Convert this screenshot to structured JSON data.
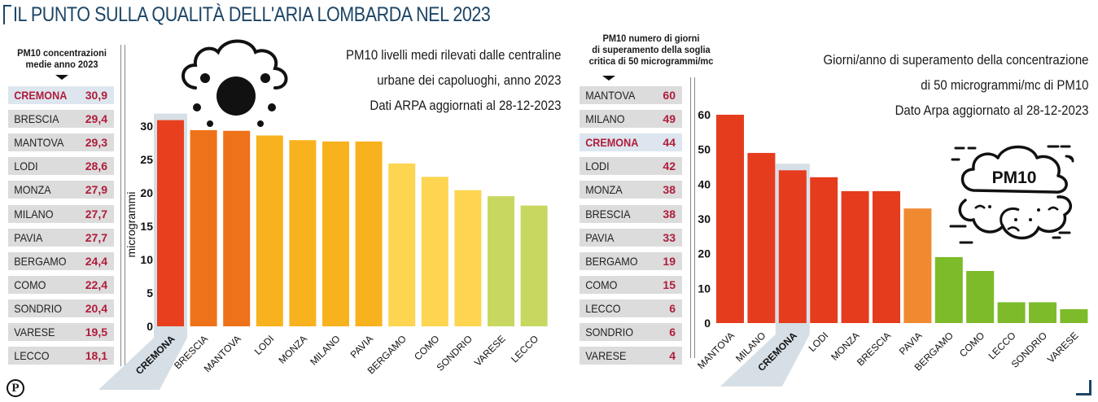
{
  "title": "IL PUNTO SULLA QUALITÀ DELL'ARIA LOMBARDA NEL 2023",
  "logo_icon": "publisher-logo-p",
  "left_table": {
    "header": [
      "PM10 concentrazioni",
      "medie anno 2023"
    ],
    "rows": [
      {
        "city": "CREMONA",
        "value": "30,9",
        "highlight": true
      },
      {
        "city": "BRESCIA",
        "value": "29,4"
      },
      {
        "city": "MANTOVA",
        "value": "29,3"
      },
      {
        "city": "LODI",
        "value": "28,6"
      },
      {
        "city": "MONZA",
        "value": "27,9"
      },
      {
        "city": "MILANO",
        "value": "27,7"
      },
      {
        "city": "PAVIA",
        "value": "27,7"
      },
      {
        "city": "BERGAMO",
        "value": "24,4"
      },
      {
        "city": "COMO",
        "value": "22,4"
      },
      {
        "city": "SONDRIO",
        "value": "20,4"
      },
      {
        "city": "VARESE",
        "value": "19,5"
      },
      {
        "city": "LECCO",
        "value": "18,1"
      }
    ]
  },
  "right_table": {
    "header": [
      "PM10 numero di giorni",
      "di superamento della soglia",
      "critica di 50 microgrammi/mc"
    ],
    "rows": [
      {
        "city": "MANTOVA",
        "value": "60"
      },
      {
        "city": "MILANO",
        "value": "49"
      },
      {
        "city": "CREMONA",
        "value": "44",
        "highlight": true
      },
      {
        "city": "LODI",
        "value": "42"
      },
      {
        "city": "MONZA",
        "value": "38"
      },
      {
        "city": "BRESCIA",
        "value": "38"
      },
      {
        "city": "PAVIA",
        "value": "33"
      },
      {
        "city": "BERGAMO",
        "value": "19"
      },
      {
        "city": "COMO",
        "value": "15"
      },
      {
        "city": "LECCO",
        "value": "6"
      },
      {
        "city": "SONDRIO",
        "value": "6"
      },
      {
        "city": "VARESE",
        "value": "4"
      }
    ]
  },
  "colors": {
    "title": "#1c4566",
    "value_text": "#b01c3b",
    "highlight_bg": "#dde6ee",
    "row_bg": "#dcdcdc"
  },
  "chart_data": [
    {
      "type": "bar",
      "title": "PM10 livelli medi rilevati dalle centraline urbane dei capoluoghi, anno 2023",
      "note_lines": [
        "PM10 livelli medi rilevati dalle centraline",
        "urbane dei capoluoghi, anno 2023",
        "Dati ARPA aggiornati al 28-12-2023"
      ],
      "icon": "smog-cloud-icon",
      "categories": [
        "CREMONA",
        "BRESCIA",
        "MANTOVA",
        "LODI",
        "MONZA",
        "MILANO",
        "PAVIA",
        "BERGAMO",
        "COMO",
        "SONDRIO",
        "VARESE",
        "LECCO"
      ],
      "values": [
        30.9,
        29.4,
        29.3,
        28.6,
        27.9,
        27.7,
        27.7,
        24.4,
        22.4,
        20.4,
        19.5,
        18.1
      ],
      "bar_colors": [
        "#e8401f",
        "#ee7219",
        "#ee7219",
        "#f8b21d",
        "#f8b21d",
        "#f8b21d",
        "#f8b21d",
        "#fdd550",
        "#fdd550",
        "#fdd550",
        "#c8d760",
        "#c8d760"
      ],
      "highlight_category": "CREMONA",
      "xlabel": "",
      "ylabel": "microgrammi",
      "yticks": [
        0,
        5,
        10,
        15,
        20,
        25,
        30
      ],
      "ylim": [
        0,
        31
      ],
      "grid": false
    },
    {
      "type": "bar",
      "title": "Giorni/anno di superamento della concentrazione di 50 microgrammi/mc di PM10",
      "note_lines": [
        "Giorni/anno di superamento della concentrazione",
        "di 50 microgrammi/mc di PM10",
        "Dato Arpa aggiornato al 28-12-2023"
      ],
      "icon": "pm10-cloud-icon",
      "icon_label": "PM10",
      "categories": [
        "MANTOVA",
        "MILANO",
        "CREMONA",
        "LODI",
        "MONZA",
        "BRESCIA",
        "PAVIA",
        "BERGAMO",
        "COMO",
        "LECCO",
        "SONDRIO",
        "VARESE"
      ],
      "values": [
        60,
        49,
        44,
        42,
        38,
        38,
        33,
        19,
        15,
        6,
        6,
        4
      ],
      "bar_colors": [
        "#e63c1e",
        "#e63c1e",
        "#e63c1e",
        "#e63c1e",
        "#e63c1e",
        "#e63c1e",
        "#f08a30",
        "#7dbb2a",
        "#7dbb2a",
        "#7dbb2a",
        "#7dbb2a",
        "#7dbb2a"
      ],
      "highlight_category": "CREMONA",
      "xlabel": "",
      "ylabel": "",
      "yticks": [
        0,
        10,
        20,
        30,
        40,
        50,
        60
      ],
      "ylim": [
        0,
        61
      ],
      "grid": false
    }
  ]
}
